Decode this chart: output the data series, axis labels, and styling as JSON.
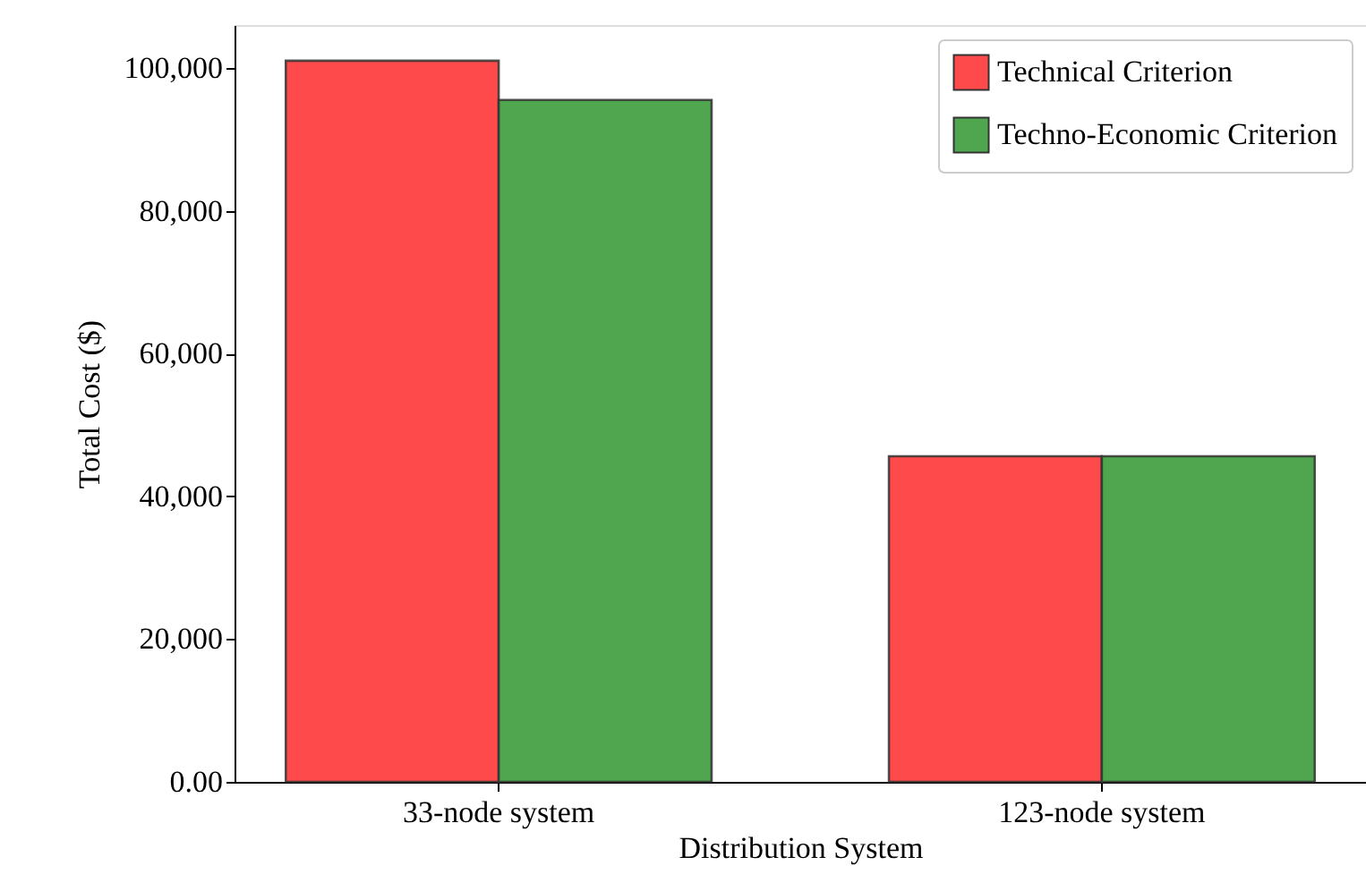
{
  "chart_data": {
    "type": "bar",
    "xlabel": "Distribution System",
    "ylabel": "Total Cost ($)",
    "categories": [
      "33-node system",
      "123-node system"
    ],
    "series": [
      {
        "name": "Technical Criterion",
        "color": "#fe4a4b",
        "values": [
          101000,
          45600
        ]
      },
      {
        "name": "Techno-Economic Criterion",
        "color": "#4fa64f",
        "values": [
          95500,
          45600
        ]
      }
    ],
    "ylim": [
      0,
      106000
    ],
    "yticks": [
      {
        "value": 0,
        "label": "0.00"
      },
      {
        "value": 20000,
        "label": "20,000"
      },
      {
        "value": 40000,
        "label": "40,000"
      },
      {
        "value": 60000,
        "label": "60,000"
      },
      {
        "value": 80000,
        "label": "80,000"
      },
      {
        "value": 100000,
        "label": "100,000"
      }
    ],
    "legend": "top right",
    "grid": false
  }
}
